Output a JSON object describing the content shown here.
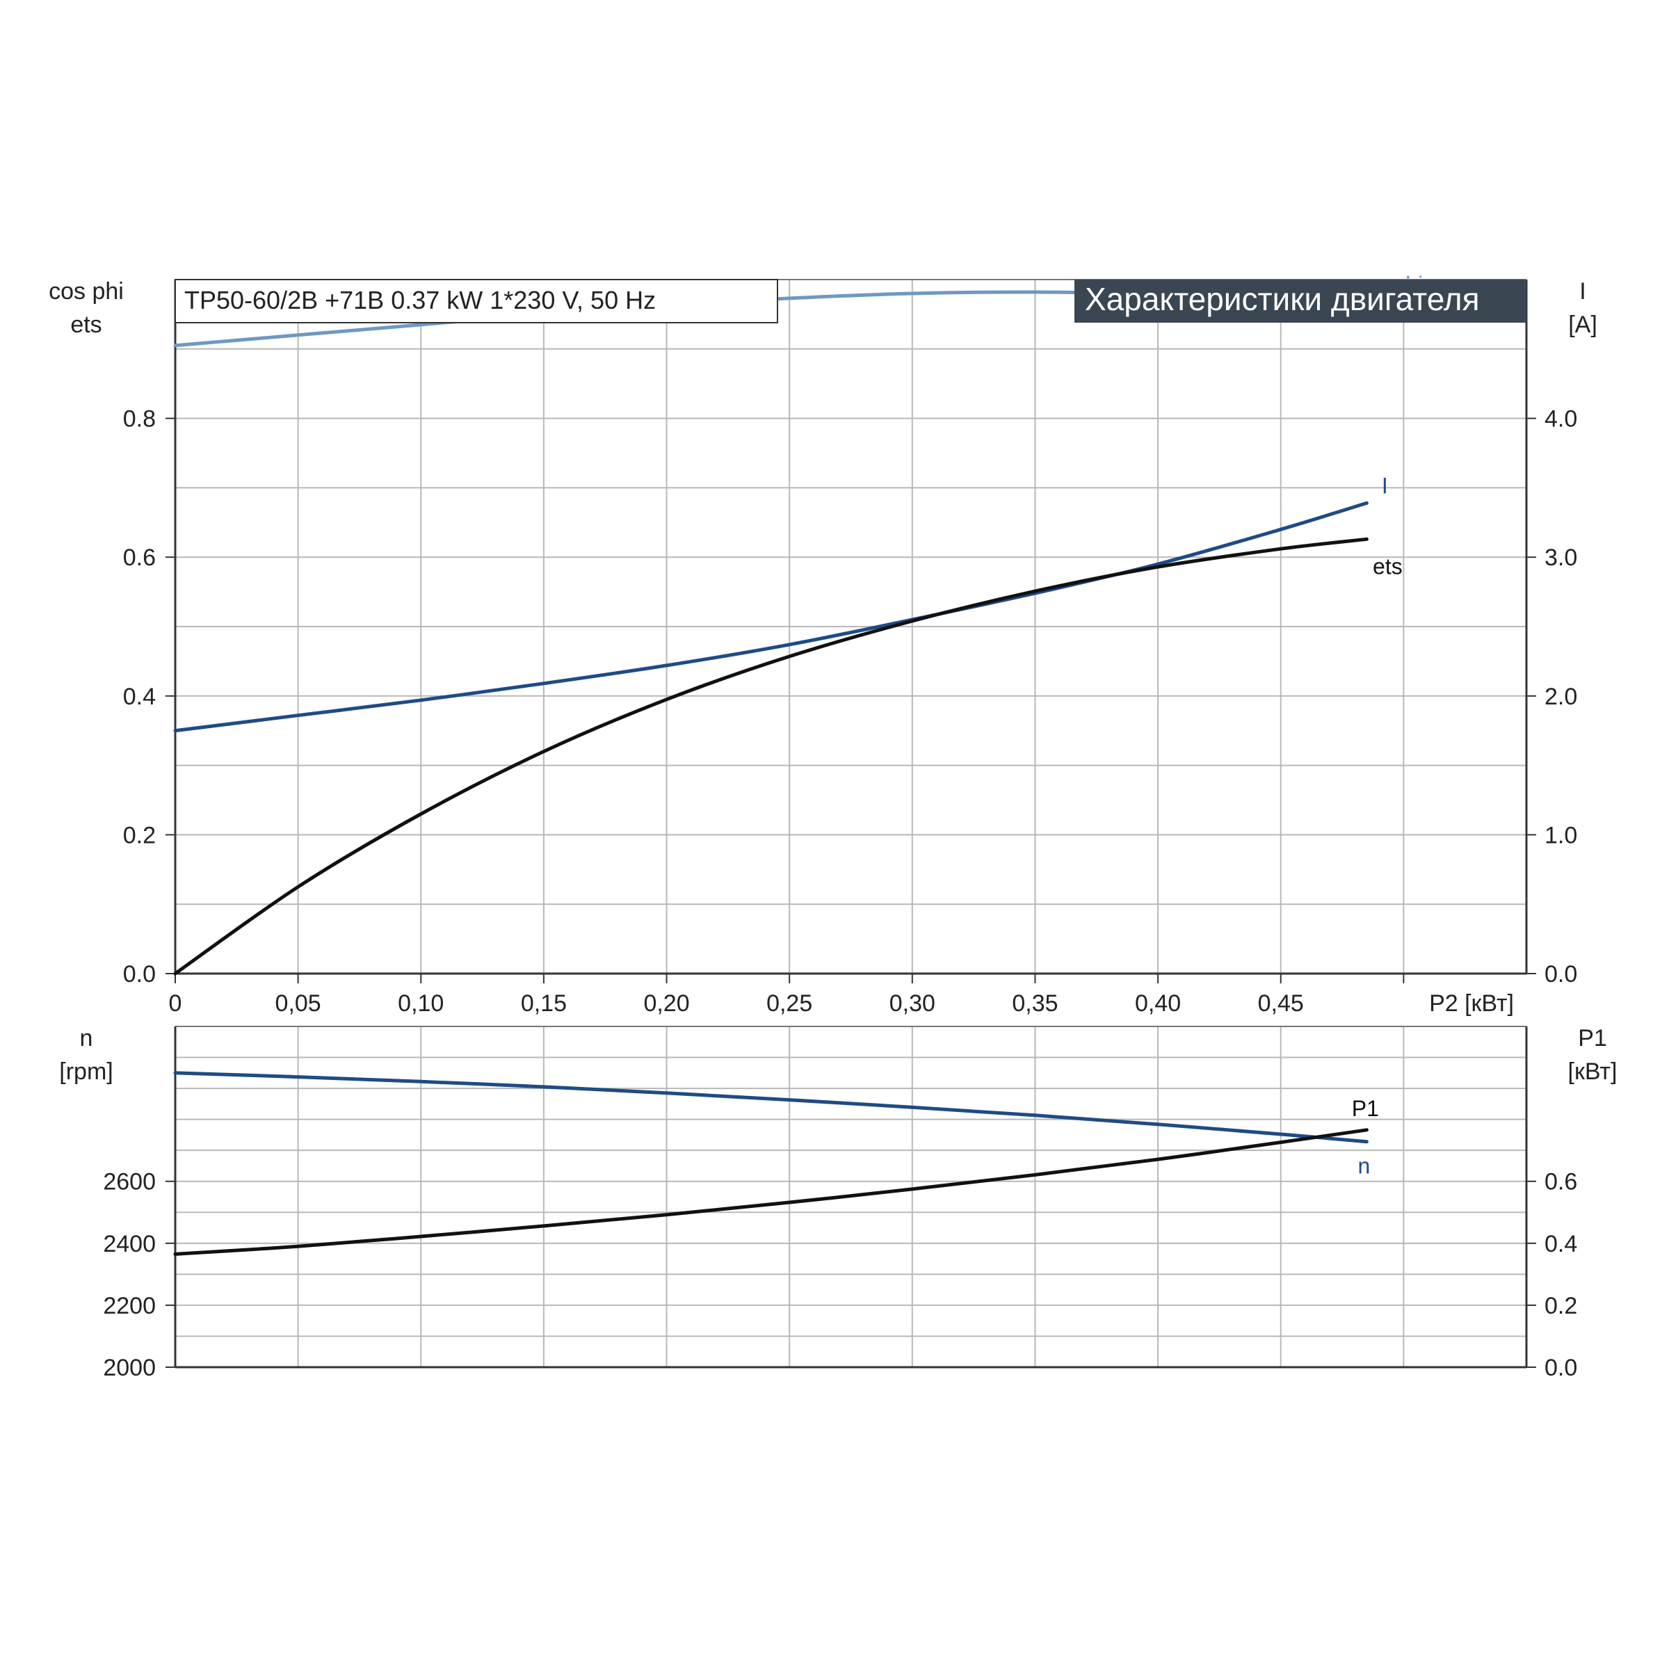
{
  "model_label": "TP50-60/2B +71B   0.37 kW   1*230 V, 50 Hz",
  "title": "Характеристики двигателя",
  "colors": {
    "cosphi": "#6f98c2",
    "current": "#1f4b86",
    "ets": "#111111",
    "speed": "#1f4b86",
    "p1": "#111111",
    "grid": "#b8b8b8",
    "title_bg": "#3b4653"
  },
  "chart_data": [
    {
      "type": "line",
      "x": [
        0,
        0.05,
        0.1,
        0.15,
        0.2,
        0.25,
        0.3,
        0.35,
        0.4,
        0.45,
        0.485
      ],
      "xlabel": "P2 [кВт]",
      "x_ticks": [
        "0",
        "0,05",
        "0,10",
        "0,15",
        "0,20",
        "0,25",
        "0,30",
        "0,35",
        "0,40",
        "0,45"
      ],
      "xlim": [
        0,
        0.55
      ],
      "left_axis": {
        "label_lines": [
          "cos phi",
          "ets"
        ],
        "ylim": [
          0,
          1.0
        ],
        "ticks": [
          "0.0",
          "0.2",
          "0.4",
          "0.6",
          "0.8"
        ]
      },
      "right_axis": {
        "label_lines": [
          "I",
          "[A]"
        ],
        "ylim": [
          0,
          5.0
        ],
        "ticks": [
          "0.0",
          "1.0",
          "2.0",
          "3.0",
          "4.0"
        ]
      },
      "grid": true,
      "series": [
        {
          "name": "cos phi",
          "axis": "left",
          "values": [
            0.905,
            0.92,
            0.935,
            0.95,
            0.963,
            0.973,
            0.98,
            0.982,
            0.979,
            0.975,
            0.97
          ]
        },
        {
          "name": "I",
          "axis": "right",
          "values": [
            1.75,
            1.86,
            1.97,
            2.09,
            2.22,
            2.37,
            2.55,
            2.74,
            2.95,
            3.2,
            3.39
          ]
        },
        {
          "name": "ets",
          "axis": "left",
          "values": [
            0.0,
            0.125,
            0.23,
            0.32,
            0.395,
            0.457,
            0.508,
            0.551,
            0.586,
            0.612,
            0.626
          ]
        }
      ]
    },
    {
      "type": "line",
      "x": [
        0,
        0.05,
        0.1,
        0.15,
        0.2,
        0.25,
        0.3,
        0.35,
        0.4,
        0.45,
        0.485
      ],
      "xlim": [
        0,
        0.55
      ],
      "left_axis": {
        "label_lines": [
          "n",
          "[rpm]"
        ],
        "ylim": [
          2000,
          3100
        ],
        "ticks": [
          "2000",
          "2200",
          "2400",
          "2600"
        ]
      },
      "right_axis": {
        "label_lines": [
          "P1",
          "[кВт]"
        ],
        "ylim": [
          0,
          1.1
        ],
        "ticks": [
          "0.0",
          "0.2",
          "0.4",
          "0.6"
        ]
      },
      "grid": true,
      "series": [
        {
          "name": "n",
          "axis": "left",
          "values": [
            2950,
            2937,
            2922,
            2905,
            2885,
            2863,
            2839,
            2813,
            2784,
            2752,
            2728
          ]
        },
        {
          "name": "P1",
          "axis": "right",
          "values": [
            0.365,
            0.39,
            0.422,
            0.456,
            0.492,
            0.532,
            0.575,
            0.621,
            0.671,
            0.726,
            0.766
          ]
        }
      ]
    }
  ]
}
